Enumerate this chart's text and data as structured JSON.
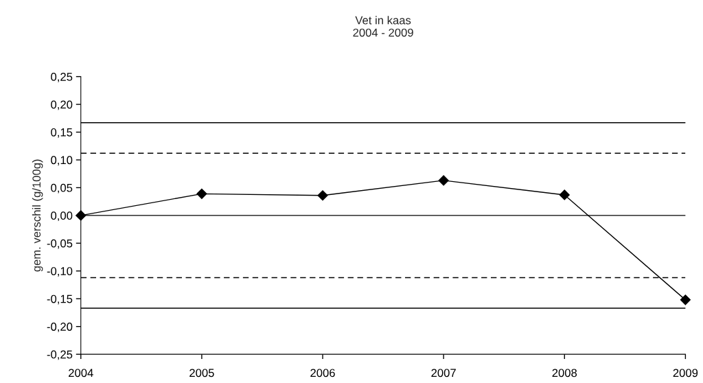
{
  "chart_data": {
    "type": "line",
    "title": "Vet in kaas\n2004 - 2009",
    "ylabel": "gem. verschil (g/100g)",
    "x": [
      2004,
      2005,
      2006,
      2007,
      2008,
      2009
    ],
    "series": [
      {
        "color": "#000000",
        "values": [
          0.0,
          0.039,
          0.036,
          0.063,
          0.037,
          -0.152
        ]
      }
    ],
    "marker": "diamond",
    "line_style": "solid",
    "grid": false,
    "legend": false,
    "xlim": [
      2004,
      2009
    ],
    "xticks": [
      2004,
      2005,
      2006,
      2007,
      2008,
      2009
    ],
    "ylim": [
      -0.25,
      0.25
    ],
    "yticks": [
      {
        "value": -0.25,
        "label": "-0,25"
      },
      {
        "value": -0.2,
        "label": "-0,20"
      },
      {
        "value": -0.15,
        "label": "-0,15"
      },
      {
        "value": -0.1,
        "label": "-0,10"
      },
      {
        "value": -0.05,
        "label": "-0,05"
      },
      {
        "value": 0,
        "label": "0,00"
      },
      {
        "value": 0.05,
        "label": "0,05"
      },
      {
        "value": 0.1,
        "label": "0,10"
      },
      {
        "value": 0.15,
        "label": "0,15"
      },
      {
        "value": 0.2,
        "label": "0,20"
      },
      {
        "value": 0.25,
        "label": "0,25"
      }
    ],
    "ref_lines": [
      {
        "axis": "y",
        "value": 0.167,
        "line_style": "solid",
        "color": "#000000"
      },
      {
        "axis": "y",
        "value": 0.112,
        "line_style": "dashed",
        "color": "#000000"
      },
      {
        "axis": "y",
        "value": 0,
        "line_style": "solid",
        "color": "#000000"
      },
      {
        "axis": "y",
        "value": -0.112,
        "line_style": "dashed",
        "color": "#000000"
      },
      {
        "axis": "y",
        "value": -0.167,
        "line_style": "solid",
        "color": "#000000"
      }
    ]
  }
}
